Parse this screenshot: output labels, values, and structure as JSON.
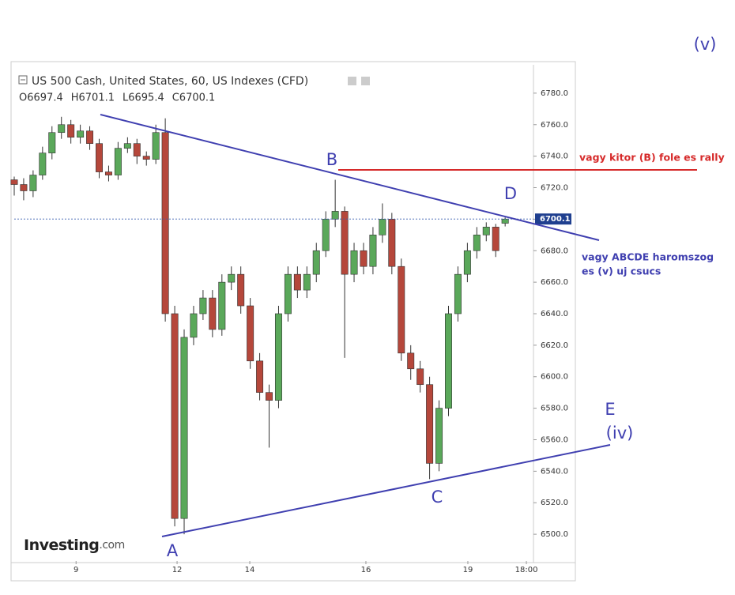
{
  "chart_data": {
    "type": "candlestick",
    "title": "US 500 Cash, United States, 60, US Indexes (CFD)",
    "ohlc_labels": [
      "O6697.4",
      "H6701.1",
      "L6695.4",
      "C6700.1"
    ],
    "logo": "Investing",
    "logo_suffix": ".com",
    "x": [
      0,
      2,
      4,
      6,
      8,
      10,
      12,
      14,
      16,
      18,
      20,
      22,
      24,
      26,
      28,
      30,
      32,
      34,
      36,
      38,
      40,
      42,
      44,
      46,
      48,
      50,
      52,
      54,
      56,
      58,
      60,
      62,
      64,
      66,
      68,
      70,
      72,
      74,
      76,
      78,
      80,
      82,
      84,
      86,
      88,
      90,
      92,
      94,
      96,
      98,
      100,
      102,
      104
    ],
    "open": [
      6725,
      6722,
      6718,
      6728,
      6742,
      6755,
      6760,
      6752,
      6756,
      6748,
      6730,
      6728,
      6745,
      6748,
      6740,
      6738,
      6755,
      6640,
      6510,
      6625,
      6640,
      6650,
      6630,
      6660,
      6665,
      6645,
      6610,
      6590,
      6585,
      6640,
      6665,
      6655,
      6665,
      6680,
      6700,
      6705,
      6665,
      6680,
      6670,
      6690,
      6700,
      6670,
      6615,
      6605,
      6595,
      6545,
      6580,
      6640,
      6665,
      6680,
      6690,
      6695,
      6697.4
    ],
    "high": [
      6727,
      6726,
      6731,
      6746,
      6759,
      6765,
      6763,
      6760,
      6759,
      6751,
      6734,
      6749,
      6752,
      6751,
      6743,
      6760,
      6764,
      6645,
      6630,
      6645,
      6655,
      6655,
      6665,
      6670,
      6670,
      6650,
      6615,
      6595,
      6645,
      6670,
      6670,
      6670,
      6685,
      6705,
      6725,
      6708,
      6685,
      6685,
      6695,
      6710,
      6704,
      6675,
      6620,
      6610,
      6600,
      6585,
      6645,
      6670,
      6685,
      6695,
      6698,
      6697,
      6701.1
    ],
    "low": [
      6715,
      6712,
      6714,
      6725,
      6738,
      6751,
      6748,
      6748,
      6744,
      6726,
      6724,
      6725,
      6742,
      6735,
      6734,
      6735,
      6635,
      6505,
      6500,
      6620,
      6636,
      6625,
      6626,
      6655,
      6640,
      6605,
      6585,
      6555,
      6580,
      6635,
      6650,
      6650,
      6660,
      6676,
      6695,
      6612,
      6660,
      6665,
      6665,
      6685,
      6665,
      6610,
      6598,
      6590,
      6535,
      6540,
      6575,
      6635,
      6660,
      6675,
      6686,
      6676,
      6695.4
    ],
    "close": [
      6722,
      6718,
      6728,
      6742,
      6755,
      6760,
      6752,
      6756,
      6748,
      6730,
      6728,
      6745,
      6748,
      6740,
      6738,
      6755,
      6640,
      6510,
      6625,
      6640,
      6650,
      6630,
      6660,
      6665,
      6645,
      6610,
      6590,
      6585,
      6640,
      6665,
      6655,
      6665,
      6680,
      6700,
      6705,
      6665,
      6680,
      6670,
      6690,
      6700,
      6670,
      6615,
      6605,
      6595,
      6545,
      6580,
      6640,
      6665,
      6680,
      6690,
      6695,
      6680,
      6700.1
    ],
    "up_color": "#5aa85a",
    "down_color": "#b5473b",
    "xlim": [
      0,
      110
    ],
    "ylim": [
      6483,
      6798
    ],
    "xticks": [
      {
        "value": 13.1,
        "label": "9"
      },
      {
        "value": 34.5,
        "label": "12"
      },
      {
        "value": 49.9,
        "label": "14"
      },
      {
        "value": 74.5,
        "label": "16"
      },
      {
        "value": 96.1,
        "label": "19"
      },
      {
        "value": 108.5,
        "label": "18:00"
      }
    ],
    "yticks": [
      {
        "value": 6500,
        "label": "6500.0"
      },
      {
        "value": 6520,
        "label": "6520.0"
      },
      {
        "value": 6540,
        "label": "6540.0"
      },
      {
        "value": 6560,
        "label": "6560.0"
      },
      {
        "value": 6580,
        "label": "6580.0"
      },
      {
        "value": 6600,
        "label": "6600.0"
      },
      {
        "value": 6620,
        "label": "6620.0"
      },
      {
        "value": 6640,
        "label": "6640.0"
      },
      {
        "value": 6660,
        "label": "6660.0"
      },
      {
        "value": 6680,
        "label": "6680.0"
      },
      {
        "value": 6700,
        "label": "6700.0"
      },
      {
        "value": 6720,
        "label": "6720.0"
      },
      {
        "value": 6740,
        "label": "6740.0"
      },
      {
        "value": 6760,
        "label": "6760.0"
      },
      {
        "value": 6780,
        "label": "6780.0"
      }
    ],
    "wave_labels": [
      "A",
      "B",
      "C",
      "D",
      "E",
      "(iv)",
      "(v)"
    ],
    "notes": [
      "vagy kitor (B) fole es rally",
      "vagy ABCDE haromszog",
      "es (v) uj csucs"
    ]
  }
}
